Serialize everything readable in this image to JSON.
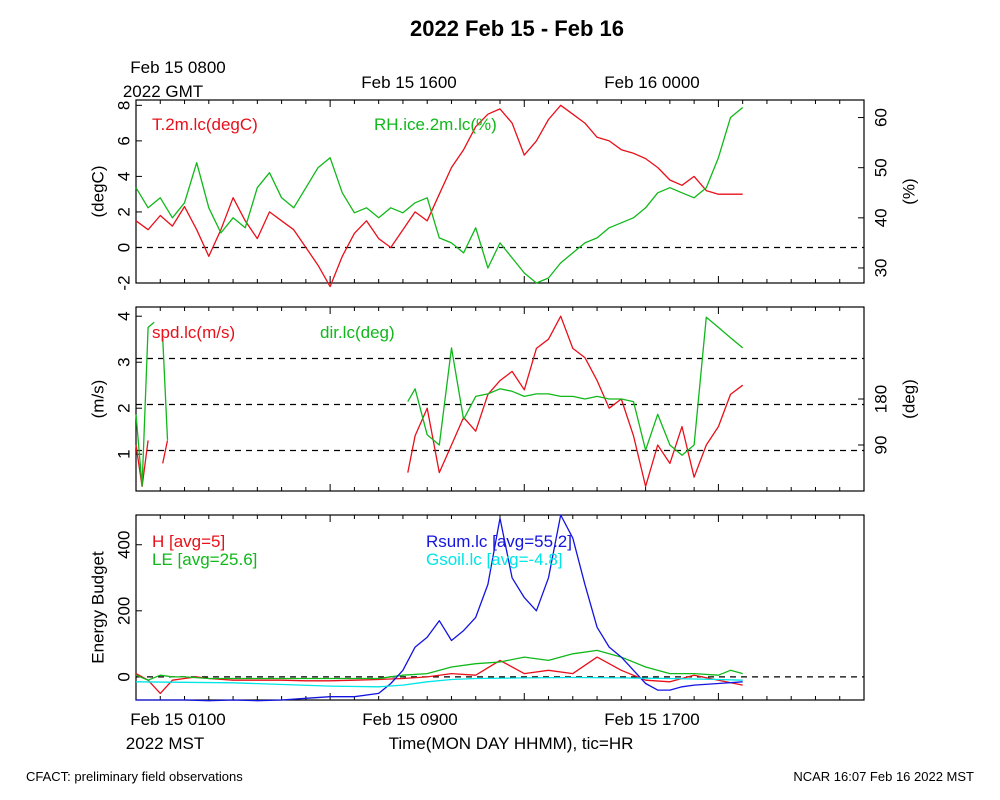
{
  "title": "2022 Feb 15 - Feb 16",
  "gmt_labels": [
    {
      "line1": "Feb 15 0800",
      "line2": "2022 GMT"
    },
    {
      "line1": "Feb 15 1600",
      "line2": ""
    },
    {
      "line1": "Feb 16 0000",
      "line2": ""
    }
  ],
  "mst_labels": [
    {
      "line1": "Feb 15 0100",
      "line2": "2022 MST"
    },
    {
      "line1": "Feb 15 0900",
      "line2": ""
    },
    {
      "line1": "Feb 15 1700",
      "line2": ""
    }
  ],
  "xlabel": "Time(MON DAY HHMM), tic=HR",
  "footer_left": "CFACT: preliminary field observations",
  "footer_right": "NCAR 16:07 Feb 16 2022 MST",
  "colors": {
    "red": "#e8101a",
    "green": "#10b81a",
    "blue": "#1414e0",
    "cyan": "#00e5e5"
  },
  "chart_data": [
    {
      "type": "line",
      "x_unit": "hours after Feb 15 0100 MST",
      "xlim": [
        0,
        30
      ],
      "ylabel_left": "(degC)",
      "ylim_left": [
        -2,
        8.3
      ],
      "yticks_left": [
        "-2",
        "0",
        "2",
        "4",
        "6",
        "8"
      ],
      "ylabel_right": "(%)",
      "ylim_right": [
        27,
        63.5
      ],
      "yticks_right": [
        "30",
        "40",
        "50",
        "60"
      ],
      "reference_lines": [
        0
      ],
      "series": [
        {
          "name": "T.2m.lc(degC)",
          "axis": "left",
          "color": "red",
          "x": [
            0,
            0.5,
            1,
            1.5,
            2,
            2.5,
            3,
            3.5,
            4,
            4.5,
            5,
            5.5,
            6,
            6.5,
            7,
            7.5,
            8,
            8.5,
            9,
            9.5,
            10,
            10.5,
            11,
            11.5,
            12,
            12.5,
            13,
            13.5,
            14,
            14.5,
            15,
            15.5,
            16,
            16.5,
            17,
            17.5,
            18,
            18.5,
            19,
            19.5,
            20,
            20.5,
            21,
            21.5,
            22,
            22.5,
            23,
            23.5,
            24,
            24.5,
            25
          ],
          "y": [
            1.5,
            1.0,
            1.8,
            1.2,
            2.3,
            1.0,
            -0.5,
            1.0,
            2.8,
            1.5,
            0.5,
            2.0,
            1.5,
            1.0,
            0,
            -1.0,
            -2.2,
            -0.5,
            0.8,
            1.5,
            0.5,
            0,
            1.0,
            2.0,
            1.5,
            3.0,
            4.5,
            5.5,
            6.8,
            7.5,
            7.8,
            7.0,
            5.2,
            6.0,
            7.2,
            8.0,
            7.5,
            7.0,
            6.2,
            6.0,
            5.5,
            5.3,
            5.0,
            4.5,
            3.8,
            3.5,
            4.0,
            3.2,
            3.0,
            3.0,
            3.0
          ]
        },
        {
          "name": "RH.ice.2m.lc(%)",
          "axis": "right",
          "color": "green",
          "x": [
            0,
            0.5,
            1,
            1.5,
            2,
            2.5,
            3,
            3.5,
            4,
            4.5,
            5,
            5.5,
            6,
            6.5,
            7,
            7.5,
            8,
            8.5,
            9,
            9.5,
            10,
            10.5,
            11,
            11.5,
            12,
            12.5,
            13,
            13.5,
            14,
            14.5,
            15,
            15.5,
            16,
            16.5,
            17,
            17.5,
            18,
            18.5,
            19,
            19.5,
            20,
            20.5,
            21,
            21.5,
            22,
            22.5,
            23,
            23.5,
            24,
            24.5,
            25
          ],
          "y": [
            46,
            42,
            44,
            40,
            43,
            51,
            42,
            37,
            40,
            38,
            46,
            49,
            44,
            42,
            46,
            50,
            52,
            45,
            41,
            42,
            40,
            42,
            41,
            43,
            44,
            36,
            35,
            33,
            38,
            30,
            35,
            32,
            29,
            27,
            28,
            31,
            33,
            35,
            36,
            38,
            39,
            40,
            42,
            45,
            46,
            45,
            44,
            46,
            52,
            60,
            62
          ]
        }
      ]
    },
    {
      "type": "line",
      "x_unit": "hours after Feb 15 0100 MST",
      "xlim": [
        0,
        30
      ],
      "ylabel_left": "(m/s)",
      "ylim_left": [
        0.2,
        4.2
      ],
      "yticks_left": [
        "1",
        "2",
        "3",
        "4"
      ],
      "ylabel_right": "(deg)",
      "ylim_right": [
        0,
        360
      ],
      "yticks_right": [
        "90",
        "180"
      ],
      "reference_lines": [
        1.08,
        2.08,
        3.08
      ],
      "series": [
        {
          "name": "spd.lc(m/s)",
          "axis": "left",
          "color": "red",
          "segments": [
            {
              "x": [
                0,
                0.25,
                0.5
              ],
              "y": [
                1.2,
                0.3,
                1.3
              ]
            },
            {
              "x": [
                1.1,
                1.3
              ],
              "y": [
                0.8,
                1.3
              ]
            },
            {
              "x": [
                11.2,
                11.5,
                12,
                12.5,
                13,
                13.5,
                14,
                14.5,
                15,
                15.5,
                16,
                16.5,
                17,
                17.5,
                18,
                18.5,
                19,
                19.5,
                20,
                20.5,
                21,
                21.5,
                22,
                22.5,
                23,
                23.5,
                24,
                24.5,
                25
              ],
              "y": [
                0.6,
                1.4,
                2.0,
                0.6,
                1.2,
                1.8,
                1.5,
                2.3,
                2.6,
                2.8,
                2.4,
                3.3,
                3.5,
                4.0,
                3.3,
                3.1,
                2.6,
                2.0,
                2.2,
                1.4,
                0.3,
                1.2,
                0.8,
                1.6,
                0.5,
                1.2,
                1.6,
                2.3,
                2.5
              ]
            }
          ]
        },
        {
          "name": "dir.lc(deg)",
          "axis": "right",
          "color": "green",
          "segments": [
            {
              "x": [
                0,
                0.25,
                0.5,
                0.75
              ],
              "y": [
                150,
                10,
                320,
                330
              ]
            },
            {
              "x": [
                1.1,
                1.3
              ],
              "y": [
                300,
                100
              ]
            },
            {
              "x": [
                11.2,
                11.5,
                12,
                12.5,
                13,
                13.5,
                14,
                14.5,
                15,
                15.5,
                16,
                16.5,
                17,
                17.5,
                18,
                18.5,
                19,
                19.5,
                20,
                20.5,
                21,
                21.5,
                22,
                22.5,
                23,
                23.5,
                24,
                24.5,
                25
              ],
              "y": [
                175,
                200,
                110,
                90,
                280,
                140,
                185,
                190,
                200,
                195,
                185,
                190,
                190,
                185,
                185,
                180,
                185,
                180,
                180,
                175,
                80,
                150,
                90,
                70,
                90,
                340,
                320,
                300,
                280
              ]
            }
          ]
        }
      ]
    },
    {
      "type": "line",
      "x_unit": "hours after Feb 15 0100 MST",
      "xlim": [
        0,
        30
      ],
      "ylabel_left": "Energy Budget",
      "ylim_left": [
        -70,
        490
      ],
      "yticks_left": [
        "0",
        "200",
        "400"
      ],
      "reference_lines": [
        0
      ],
      "series": [
        {
          "name": "H [avg=5]",
          "color": "red",
          "x": [
            0,
            0.5,
            1,
            1.5,
            2,
            2.5,
            3,
            4,
            5,
            6,
            7,
            8,
            9,
            10,
            11,
            12,
            13,
            14,
            15,
            16,
            17,
            18,
            19,
            20,
            21,
            22,
            23,
            24,
            25
          ],
          "y": [
            10,
            -10,
            -50,
            -10,
            -5,
            0,
            -5,
            -10,
            -10,
            -10,
            -12,
            -12,
            -10,
            -8,
            -5,
            0,
            10,
            5,
            50,
            10,
            20,
            10,
            60,
            20,
            -10,
            -15,
            5,
            -10,
            -25
          ]
        },
        {
          "name": "LE [avg=25.6]",
          "color": "green",
          "x": [
            0,
            0.5,
            1,
            1.5,
            2,
            3,
            4,
            5,
            6,
            7,
            8,
            9,
            10,
            11,
            12,
            13,
            14,
            15,
            16,
            17,
            18,
            19,
            20,
            21,
            22,
            23,
            24,
            24.5,
            25
          ],
          "y": [
            5,
            -10,
            5,
            0,
            0,
            -5,
            -5,
            -5,
            -5,
            -5,
            -5,
            -5,
            -5,
            5,
            10,
            30,
            40,
            45,
            60,
            50,
            70,
            80,
            60,
            30,
            10,
            10,
            5,
            20,
            10
          ]
        },
        {
          "name": "Rsum.lc [avg=55.2]",
          "color": "blue",
          "x": [
            0,
            1,
            2,
            3,
            4,
            5,
            6,
            7,
            8,
            9,
            10,
            10.5,
            11,
            11.5,
            12,
            12.5,
            13,
            13.5,
            14,
            14.5,
            15,
            15.5,
            16,
            16.5,
            17,
            17.5,
            18,
            18.5,
            19,
            19.5,
            20,
            20.5,
            21,
            21.5,
            22,
            22.5,
            23,
            24,
            25
          ],
          "y": [
            -70,
            -70,
            -70,
            -72,
            -70,
            -72,
            -70,
            -65,
            -60,
            -60,
            -50,
            -20,
            20,
            90,
            120,
            170,
            110,
            140,
            180,
            280,
            480,
            300,
            240,
            200,
            300,
            490,
            420,
            280,
            150,
            90,
            60,
            20,
            -20,
            -40,
            -40,
            -30,
            -25,
            -20,
            -15
          ]
        },
        {
          "name": "Gsoil.lc [avg=-4.8]",
          "color": "cyan",
          "x": [
            0,
            4,
            8,
            10,
            11,
            12,
            13,
            14,
            16,
            18,
            20,
            22,
            24,
            25
          ],
          "y": [
            -15,
            -18,
            -28,
            -30,
            -25,
            -15,
            -8,
            -5,
            -3,
            -2,
            -3,
            -5,
            -8,
            -10
          ]
        }
      ]
    }
  ]
}
